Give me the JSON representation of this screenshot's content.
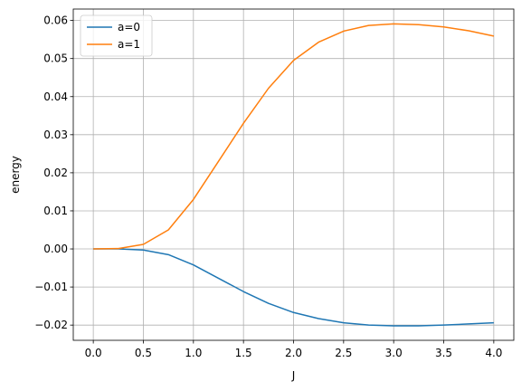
{
  "chart_data": {
    "type": "line",
    "xlabel": "J",
    "ylabel": "energy",
    "xlim": [
      -0.2,
      4.2
    ],
    "ylim": [
      -0.024,
      0.063
    ],
    "xticks": [
      0.0,
      0.5,
      1.0,
      1.5,
      2.0,
      2.5,
      3.0,
      3.5,
      4.0
    ],
    "xtick_labels": [
      "0.0",
      "0.5",
      "1.0",
      "1.5",
      "2.0",
      "2.5",
      "3.0",
      "3.5",
      "4.0"
    ],
    "yticks": [
      -0.02,
      -0.01,
      0.0,
      0.01,
      0.02,
      0.03,
      0.04,
      0.05,
      0.06
    ],
    "ytick_labels": [
      "−0.02",
      "−0.01",
      "0.00",
      "0.01",
      "0.02",
      "0.03",
      "0.04",
      "0.05",
      "0.06"
    ],
    "grid": true,
    "legend_position": "top-left",
    "series": [
      {
        "name": "a=0",
        "color": "#1f77b4",
        "x": [
          0.0,
          0.25,
          0.5,
          0.75,
          1.0,
          1.25,
          1.5,
          1.75,
          2.0,
          2.25,
          2.5,
          2.75,
          3.0,
          3.25,
          3.5,
          3.75,
          4.0
        ],
        "y": [
          0.0,
          0.0,
          -0.0003,
          -0.0015,
          -0.0042,
          -0.0077,
          -0.0112,
          -0.0143,
          -0.0167,
          -0.0183,
          -0.0194,
          -0.02,
          -0.0202,
          -0.0202,
          -0.02,
          -0.0197,
          -0.0194
        ]
      },
      {
        "name": "a=1",
        "color": "#ff7f0e",
        "x": [
          0.0,
          0.25,
          0.5,
          0.75,
          1.0,
          1.25,
          1.5,
          1.75,
          2.0,
          2.25,
          2.5,
          2.75,
          3.0,
          3.25,
          3.5,
          3.75,
          4.0
        ],
        "y": [
          0.0,
          0.0001,
          0.0012,
          0.005,
          0.013,
          0.023,
          0.033,
          0.0422,
          0.0495,
          0.0543,
          0.0572,
          0.0587,
          0.0591,
          0.0589,
          0.0583,
          0.0573,
          0.0559
        ]
      }
    ]
  }
}
